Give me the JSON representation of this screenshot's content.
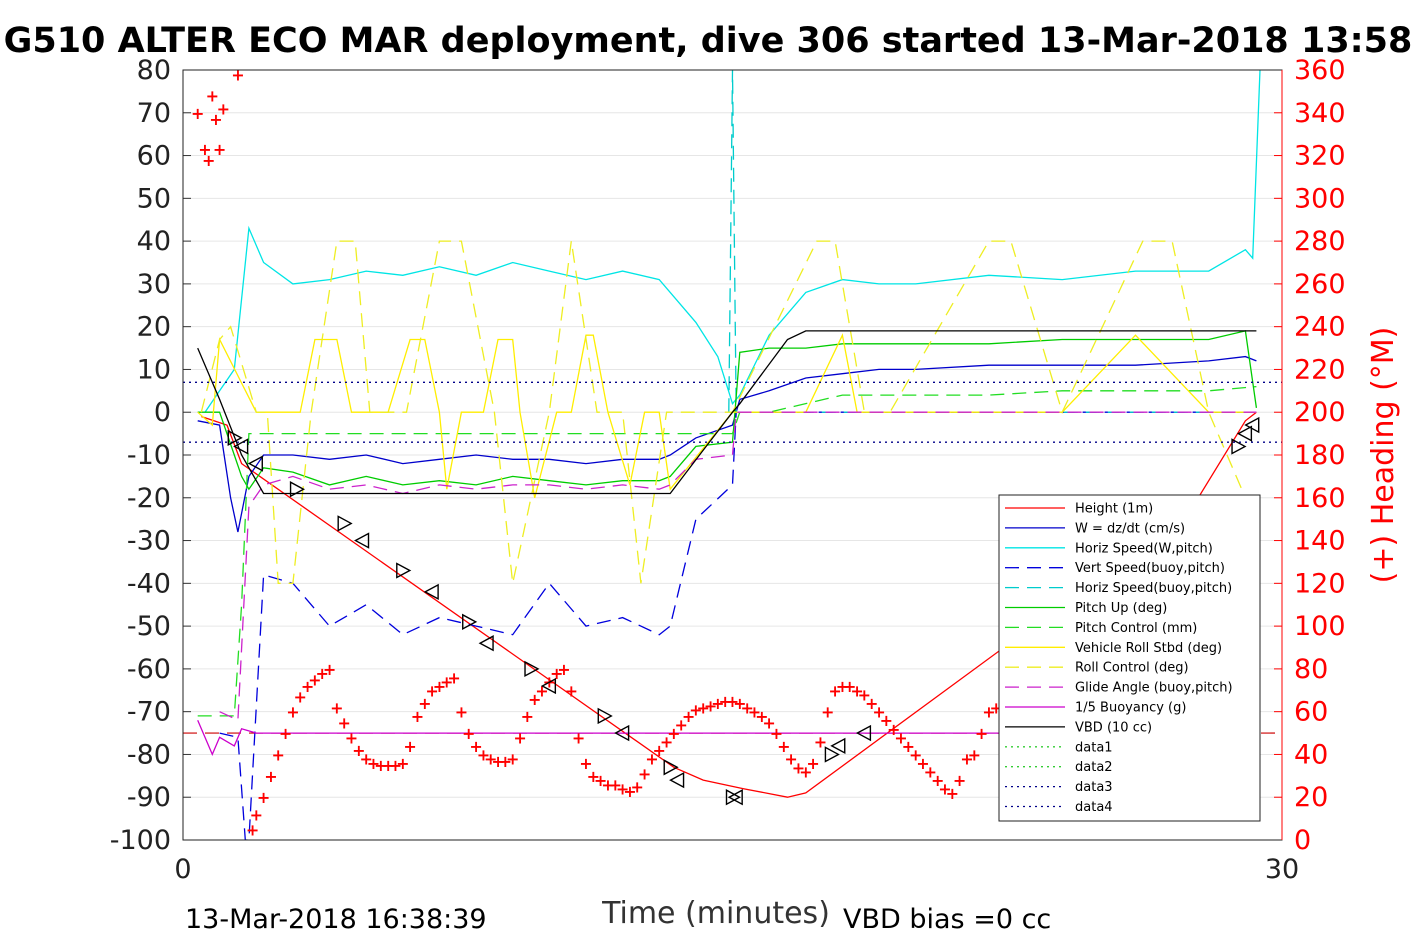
{
  "chart_data": {
    "type": "line",
    "title": "G510 ALTER ECO MAR deployment, dive 306 started 13-Mar-2018 13:58",
    "xlabel": "Time (minutes)",
    "ylabel_right": "(+) Heading (°M)",
    "footer_left": "13-Mar-2018 16:38:39",
    "footer_right": "VBD bias =0 cc",
    "xlim": [
      0,
      30
    ],
    "ylim": [
      -100,
      80
    ],
    "ylim_right": [
      0,
      360
    ],
    "x_ticks": [
      "0",
      "30"
    ],
    "y_ticks": [
      "80",
      "70",
      "60",
      "50",
      "40",
      "30",
      "20",
      "10",
      "0",
      "-10",
      "-20",
      "-30",
      "-40",
      "-50",
      "-60",
      "-70",
      "-80",
      "-90",
      "-100"
    ],
    "y_ticks_right": [
      "360",
      "340",
      "320",
      "300",
      "280",
      "260",
      "240",
      "220",
      "200",
      "180",
      "160",
      "140",
      "120",
      "100",
      "80",
      "60",
      "40",
      "20",
      "0"
    ],
    "grid": true,
    "legend_placement": "bottom-right",
    "series": [
      {
        "name": "Height (1m)",
        "color": "#ff0000",
        "style": "solid",
        "x": [
          0.5,
          1.2,
          1.6,
          13.4,
          14.2,
          15.3,
          16.5,
          17.0,
          27.5,
          29.0,
          29.3
        ],
        "y": [
          -1,
          -3,
          -12,
          -83,
          -86,
          -88,
          -90,
          -89,
          -23,
          -2,
          0
        ]
      },
      {
        "name": "W = dz/dt (cm/s)",
        "color": "#0000cc",
        "style": "solid",
        "x": [
          0.4,
          1.0,
          1.3,
          1.5,
          1.8,
          2.2,
          3,
          4,
          5,
          6,
          7,
          8,
          9,
          10,
          11,
          12,
          13,
          13.3,
          14,
          15,
          15.2,
          16,
          17,
          18,
          19,
          20,
          22,
          24,
          26,
          28,
          29,
          29.3
        ],
        "y": [
          -2,
          -3,
          -20,
          -28,
          -15,
          -10,
          -10,
          -11,
          -10,
          -12,
          -11,
          -10,
          -11,
          -11,
          -12,
          -11,
          -11,
          -10,
          -6,
          -3,
          3,
          5,
          8,
          9,
          10,
          10,
          11,
          11,
          11,
          12,
          13,
          12
        ]
      },
      {
        "name": "Horiz Speed(W,pitch)",
        "color": "#00e5e5",
        "style": "solid",
        "x": [
          0.6,
          1.0,
          1.4,
          1.8,
          2.2,
          3,
          4,
          5,
          6,
          7,
          8,
          9,
          10,
          11,
          12,
          13,
          14,
          14.6,
          15.0,
          15.2,
          16,
          17,
          18,
          19,
          20,
          22,
          24,
          26,
          28,
          29.0,
          29.2,
          29.4
        ],
        "y": [
          0,
          5,
          10,
          43,
          35,
          30,
          31,
          33,
          32,
          34,
          32,
          35,
          33,
          31,
          33,
          31,
          21,
          13,
          2,
          4,
          18,
          28,
          31,
          30,
          30,
          32,
          31,
          33,
          33,
          38,
          36,
          80
        ]
      },
      {
        "name": "Vert Speed(buoy,pitch)",
        "color": "#0000dd",
        "style": "dashed",
        "x": [
          1.0,
          1.5,
          1.7,
          1.8,
          2.2,
          3,
          4,
          5,
          6,
          7,
          8,
          9,
          10,
          11,
          12,
          13,
          13.3,
          14,
          15.0,
          15.1,
          15.3,
          16,
          20,
          24,
          28,
          29.3
        ],
        "y": [
          -75,
          -76,
          -100,
          -100,
          -38,
          -40,
          -50,
          -45,
          -52,
          -48,
          -50,
          -52,
          -40,
          -50,
          -48,
          -52,
          -50,
          -25,
          -17,
          0,
          0,
          0,
          0,
          0,
          0,
          0
        ]
      },
      {
        "name": "Horiz Speed(buoy,pitch)",
        "color": "#00cccc",
        "style": "dashed",
        "x": [
          14.9,
          15.0,
          15.1,
          15.2,
          15.3,
          16,
          20,
          24,
          28,
          29.3
        ],
        "y": [
          0,
          80,
          0,
          0,
          0,
          0,
          0,
          0,
          0,
          0
        ]
      },
      {
        "name": "Pitch Up (deg)",
        "color": "#00cc00",
        "style": "solid",
        "x": [
          0.4,
          1.0,
          1.4,
          1.6,
          1.8,
          2.2,
          3,
          4,
          5,
          6,
          7,
          8,
          9,
          10,
          11,
          12,
          13,
          13.3,
          14,
          15.0,
          15.2,
          16,
          17,
          18,
          19,
          20,
          22,
          24,
          26,
          28,
          29.0,
          29.3
        ],
        "y": [
          0,
          0,
          -10,
          -15,
          -18,
          -13,
          -14,
          -17,
          -15,
          -17,
          -16,
          -17,
          -15,
          -16,
          -17,
          -16,
          -16,
          -15,
          -8,
          -7,
          14,
          15,
          15,
          16,
          16,
          16,
          16,
          17,
          17,
          17,
          19,
          1
        ]
      },
      {
        "name": "Pitch Control (mm)",
        "color": "#22dd22",
        "style": "dashed",
        "x": [
          0.4,
          1.4,
          1.6,
          1.8,
          2.0,
          4,
          6,
          8,
          10,
          12,
          13.3,
          14,
          15.0,
          15.2,
          16,
          18,
          20,
          22,
          24,
          26,
          28,
          29.3
        ],
        "y": [
          -71,
          -71,
          -45,
          -5,
          -5,
          -5,
          -5,
          -5,
          -5,
          -5,
          -5,
          -5,
          -5,
          0,
          0,
          4,
          4,
          4,
          5,
          5,
          5,
          6
        ]
      },
      {
        "name": "Vehicle Roll Stbd (deg)",
        "color": "#ffee00",
        "style": "solid",
        "x": [
          0.4,
          0.8,
          1.0,
          2.0,
          2.6,
          3.0,
          3.2,
          3.6,
          4.2,
          4.6,
          5.0,
          5.2,
          5.6,
          6.2,
          6.6,
          7.0,
          7.2,
          7.6,
          8.2,
          8.6,
          9.0,
          9.2,
          9.6,
          10.2,
          10.6,
          11.0,
          11.2,
          11.6,
          12.2,
          12.6,
          13.0,
          13.3,
          15,
          17,
          18,
          18.4,
          19,
          20,
          22,
          24,
          26,
          28,
          29.3
        ],
        "y": [
          0,
          -3,
          17,
          0,
          0,
          0,
          0,
          17,
          17,
          0,
          0,
          0,
          0,
          17,
          17,
          0,
          -18,
          0,
          0,
          17,
          17,
          0,
          -20,
          0,
          0,
          18,
          18,
          0,
          -17,
          0,
          0,
          -18,
          0,
          0,
          18,
          0,
          0,
          0,
          0,
          0,
          18,
          0,
          0
        ]
      },
      {
        "name": "Roll Control (deg)",
        "color": "#eeee22",
        "style": "dashed",
        "x": [
          0.5,
          1.0,
          1.3,
          2.0,
          2.3,
          2.6,
          3.0,
          3.5,
          4.2,
          4.7,
          5.1,
          5.6,
          6.1,
          7.0,
          7.6,
          8.5,
          9.0,
          10.0,
          10.6,
          11.3,
          12.0,
          12.5,
          13.2,
          13.4,
          15,
          17.3,
          17.8,
          18.6,
          19.3,
          22.0,
          22.6,
          24.0,
          26.2,
          27.0,
          28.0,
          29.0
        ],
        "y": [
          0,
          17,
          20,
          0,
          0,
          -40,
          -40,
          0,
          40,
          40,
          0,
          0,
          0,
          40,
          40,
          0,
          -40,
          0,
          40,
          0,
          0,
          -40,
          0,
          0,
          0,
          40,
          40,
          0,
          0,
          40,
          40,
          0,
          40,
          40,
          0,
          -20
        ]
      },
      {
        "name": "Glide Angle (buoy,pitch)",
        "color": "#cc22cc",
        "style": "dashed",
        "x": [
          1.0,
          1.5,
          1.8,
          2.2,
          3,
          4,
          5,
          6,
          7,
          8,
          9,
          10,
          11,
          12,
          13,
          13.3,
          14,
          15.0,
          15.1,
          16,
          18,
          20,
          22,
          24,
          26,
          28,
          29.3
        ],
        "y": [
          -70,
          -72,
          -22,
          -17,
          -15,
          -18,
          -17,
          -19,
          -17,
          -18,
          -17,
          -17,
          -18,
          -17,
          -18,
          -17,
          -11,
          -10,
          0,
          0,
          0,
          0,
          0,
          0,
          0,
          0,
          0
        ]
      },
      {
        "name": "1/5 Buoyancy (g)",
        "color": "#cc00cc",
        "style": "solid",
        "x": [
          0.4,
          0.8,
          1.0,
          1.4,
          1.6,
          2.0,
          5,
          10,
          15,
          20,
          25,
          29.3
        ],
        "y": [
          -72,
          -80,
          -76,
          -78,
          -74,
          -75,
          -75,
          -75,
          -75,
          -75,
          -75,
          -75
        ]
      },
      {
        "name": "VBD (10 cc)",
        "color": "#000000",
        "style": "solid",
        "x": [
          0.4,
          1.0,
          1.6,
          2.2,
          13.3,
          14.1,
          15.0,
          15.2,
          16.5,
          17.0,
          20,
          24,
          28,
          29.3
        ],
        "y": [
          15,
          3,
          -10,
          -19,
          -19,
          -10,
          0,
          2,
          17,
          19,
          19,
          19,
          19,
          19
        ]
      },
      {
        "name": "data1",
        "color": "#33cc33",
        "style": "dotted",
        "x": [],
        "y": []
      },
      {
        "name": "data2",
        "color": "#33cc33",
        "style": "dotted",
        "x": [],
        "y": []
      },
      {
        "name": "data3",
        "color": "#000088",
        "style": "dotted",
        "x": [
          0,
          30
        ],
        "y": [
          7,
          7
        ]
      },
      {
        "name": "data4",
        "color": "#000088",
        "style": "dotted",
        "x": [
          0,
          30
        ],
        "y": [
          -7,
          -7
        ]
      }
    ],
    "reference_lines": [
      {
        "color": "#cc0000",
        "style": "dashed",
        "y": -75
      }
    ],
    "heading_points": {
      "color": "#ff0000",
      "marker": "+",
      "x": [
        0.4,
        0.6,
        0.7,
        0.8,
        0.9,
        1.0,
        1.1,
        1.5,
        1.9,
        2.0,
        2.2,
        2.4,
        2.6,
        2.8,
        3.0,
        3.2,
        3.4,
        3.6,
        3.8,
        4.0,
        4.2,
        4.4,
        4.6,
        4.8,
        5.0,
        5.2,
        5.4,
        5.6,
        5.8,
        6.0,
        6.2,
        6.4,
        6.6,
        6.8,
        7.0,
        7.2,
        7.4,
        7.6,
        7.8,
        8.0,
        8.2,
        8.4,
        8.6,
        8.8,
        9.0,
        9.2,
        9.4,
        9.6,
        9.8,
        10.0,
        10.2,
        10.4,
        10.6,
        10.8,
        11.0,
        11.2,
        11.4,
        11.6,
        11.8,
        12.0,
        12.2,
        12.4,
        12.6,
        12.8,
        13.0,
        13.2,
        13.4,
        13.6,
        13.8,
        14.0,
        14.2,
        14.4,
        14.6,
        14.8,
        15.0,
        15.2,
        15.4,
        15.6,
        15.8,
        16.0,
        16.2,
        16.4,
        16.6,
        16.8,
        17.0,
        17.2,
        17.4,
        17.6,
        17.8,
        18.0,
        18.2,
        18.4,
        18.6,
        18.8,
        19.0,
        19.2,
        19.4,
        19.6,
        19.8,
        20.0,
        20.2,
        20.4,
        20.6,
        20.8,
        21.0,
        21.2,
        21.4,
        21.6,
        21.8,
        22.0,
        22.2,
        22.4,
        22.6,
        22.8
      ],
      "y": [
        340,
        323,
        318,
        348,
        337,
        323,
        342,
        358,
        5,
        12,
        20,
        30,
        40,
        50,
        60,
        67,
        72,
        75,
        78,
        80,
        62,
        55,
        48,
        42,
        38,
        36,
        35,
        35,
        35,
        36,
        44,
        58,
        64,
        70,
        72,
        74,
        76,
        60,
        50,
        44,
        40,
        38,
        37,
        37,
        38,
        48,
        58,
        66,
        70,
        74,
        78,
        80,
        70,
        48,
        36,
        30,
        28,
        26,
        26,
        24,
        23,
        25,
        31,
        38,
        42,
        46,
        50,
        54,
        58,
        61,
        62,
        63,
        64,
        65,
        65,
        64,
        62,
        60,
        58,
        55,
        50,
        44,
        38,
        34,
        32,
        36,
        46,
        60,
        70,
        72,
        72,
        70,
        68,
        64,
        60,
        56,
        52,
        48,
        44,
        40,
        36,
        32,
        28,
        24,
        22,
        28,
        38,
        40,
        50,
        60,
        62,
        64,
        66,
        68
      ]
    },
    "markers_triangle_right": {
      "x": [
        1.4,
        3.1,
        4.4,
        6.0,
        7.8,
        9.5,
        11.5,
        13.3,
        15.0,
        17.7,
        27.0,
        28.8
      ],
      "y": [
        -6,
        -18,
        -26,
        -37,
        -49,
        -60,
        -71,
        -83,
        -90,
        -80,
        -53,
        -8
      ]
    },
    "markers_triangle_left": {
      "x": [
        1.6,
        2.0,
        4.9,
        6.8,
        8.3,
        10.0,
        12.0,
        13.5,
        15.1,
        17.9,
        18.6,
        27.3,
        29.0,
        29.2
      ],
      "y": [
        -8,
        -12,
        -30,
        -42,
        -54,
        -64,
        -75,
        -86,
        -90,
        -78,
        -75,
        -51,
        -5,
        -3
      ]
    }
  },
  "legend_items": [
    "Height (1m)",
    "W = dz/dt (cm/s)",
    "Horiz Speed(W,pitch)",
    "Vert Speed(buoy,pitch)",
    "Horiz Speed(buoy,pitch)",
    "Pitch Up (deg)",
    "Pitch Control (mm)",
    "Vehicle Roll Stbd (deg)",
    "Roll Control (deg)",
    "Glide Angle (buoy,pitch)",
    "1/5 Buoyancy (g)",
    "VBD (10 cc)",
    "data1",
    "data2",
    "data3",
    "data4"
  ]
}
